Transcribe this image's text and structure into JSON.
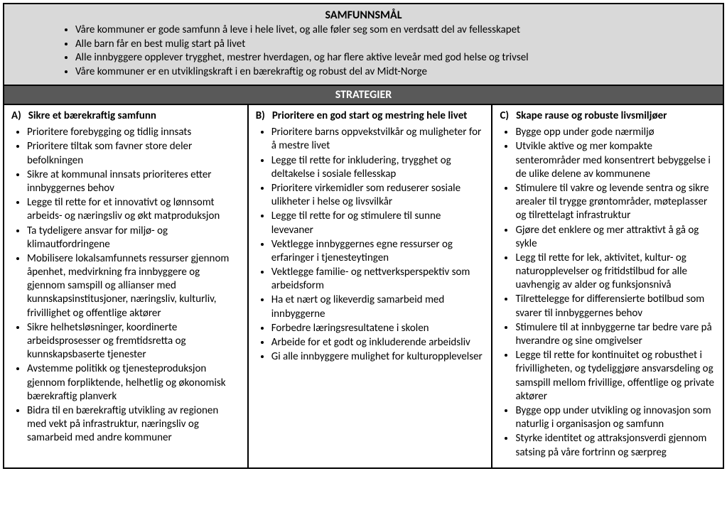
{
  "goals": {
    "heading": "SAMFUNNSMÅL",
    "items": [
      "Våre kommuner er gode samfunn å leve i hele livet, og alle føler seg som en verdsatt del av fellesskapet",
      "Alle barn får en best mulig start på livet",
      "Alle innbyggere opplever trygghet, mestrer hverdagen, og har flere aktive leveår med god helse og trivsel",
      "Våre kommuner er en utviklingskraft i en bærekraftig og robust del av Midt-Norge"
    ]
  },
  "strategies": {
    "heading": "STRATEGIER",
    "columns": [
      {
        "letter": "A)",
        "title": "Sikre et bærekraftig samfunn",
        "items": [
          "Prioritere forebygging og tidlig innsats",
          "Prioritere tiltak som favner store deler befolkningen",
          "Sikre at kommunal innsats prioriteres etter innbyggernes behov",
          "Legge til rette for et innovativt og lønnsomt arbeids- og næringsliv og økt matproduksjon",
          "Ta tydeligere ansvar for miljø- og klimautfordringene",
          "Mobilisere lokalsamfunnets ressurser gjennom åpenhet, medvirkning fra innbyggere og gjennom samspill og allianser med kunnskapsinstitusjoner, næringsliv, kulturliv, frivillighet og offentlige aktører",
          "Sikre helhetsløsninger, koordinerte arbeidsprosesser og fremtidsretta og kunnskapsbaserte tjenester",
          "Avstemme politikk og tjenesteproduksjon gjennom forpliktende, helhetlig og økonomisk bærekraftig planverk",
          "Bidra til en bærekraftig utvikling av regionen med vekt på infrastruktur, næringsliv og samarbeid med andre kommuner"
        ]
      },
      {
        "letter": "B)",
        "title": "Prioritere en god start og mestring hele livet",
        "items": [
          "Prioritere barns oppvekstvilkår og muligheter for å mestre livet",
          "Legge til rette for inkludering, trygghet og deltakelse i sosiale fellesskap",
          "Prioritere virkemidler som reduserer sosiale ulikheter i helse og livsvilkår",
          "Legge til rette for og stimulere til sunne levevaner",
          "Vektlegge innbyggernes egne ressurser og erfaringer i tjenesteytingen",
          "Vektlegge familie- og nettverksperspektiv som arbeidsform",
          "Ha et nært og likeverdig samarbeid med innbyggerne",
          "Forbedre læringsresultatene i skolen",
          "Arbeide for et godt og inkluderende arbeidsliv",
          "Gi alle innbyggere mulighet for kulturopplevelser"
        ]
      },
      {
        "letter": "C)",
        "title": "Skape rause og robuste livsmiljøer",
        "items": [
          "Bygge opp under gode nærmiljø",
          "Utvikle aktive og mer kompakte senterområder med konsentrert bebyggelse i de ulike delene av kommunene",
          "Stimulere til vakre og levende sentra og sikre arealer til trygge grøntområder, møteplasser og tilrettelagt infrastruktur",
          "Gjøre det enklere og mer attraktivt å gå og sykle",
          "Legg til rette for lek, aktivitet, kultur- og naturopplevelser og fritidstilbud for alle uavhengig av alder og funksjonsnivå",
          "Tilrettelegge for differensierte botilbud som svarer til innbyggernes behov",
          "Stimulere til at innbyggerne tar bedre vare på hverandre og sine omgivelser",
          "Legge til rette for kontinuitet og robusthet i frivilligheten, og tydeliggjøre ansvarsdeling og samspill mellom frivillige, offentlige og private aktører",
          "Bygge opp under utvikling og innovasjon som naturlig i organisasjon og samfunn",
          "Styrke identitet og attraksjonsverdi gjennom satsing på våre fortrinn og særpreg"
        ]
      }
    ]
  }
}
